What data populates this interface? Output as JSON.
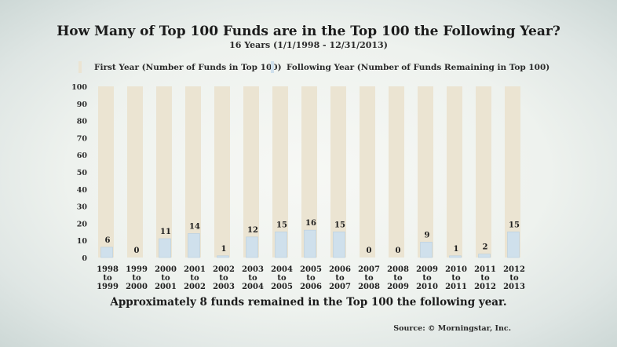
{
  "chart_data": {
    "type": "bar",
    "title": "How Many of Top 100 Funds are in the Top 100 the Following Year?",
    "subtitle": "16 Years (1/1/1998 - 12/31/2013)",
    "categories": [
      [
        "1998",
        "to",
        "1999"
      ],
      [
        "1999",
        "to",
        "2000"
      ],
      [
        "2000",
        "to",
        "2001"
      ],
      [
        "2001",
        "to",
        "2002"
      ],
      [
        "2002",
        "to",
        "2003"
      ],
      [
        "2003",
        "to",
        "2004"
      ],
      [
        "2004",
        "to",
        "2005"
      ],
      [
        "2005",
        "to",
        "2006"
      ],
      [
        "2006",
        "to",
        "2007"
      ],
      [
        "2007",
        "to",
        "2008"
      ],
      [
        "2008",
        "to",
        "2009"
      ],
      [
        "2009",
        "to",
        "2010"
      ],
      [
        "2010",
        "to",
        "2011"
      ],
      [
        "2011",
        "to",
        "2012"
      ],
      [
        "2012",
        "to",
        "2013"
      ]
    ],
    "series": [
      {
        "name": "First Year (Number of Funds in Top 100)",
        "color": "#ebe4d2",
        "values": [
          100,
          100,
          100,
          100,
          100,
          100,
          100,
          100,
          100,
          100,
          100,
          100,
          100,
          100,
          100
        ]
      },
      {
        "name": "Following Year (Number of Funds Remaining in Top 100)",
        "color": "#cfe0ec",
        "values": [
          6,
          0,
          11,
          14,
          1,
          12,
          15,
          16,
          15,
          0,
          0,
          9,
          1,
          2,
          15
        ]
      }
    ],
    "ylim": [
      0,
      100
    ],
    "yticks": [
      0,
      10,
      20,
      30,
      40,
      50,
      60,
      70,
      80,
      90,
      100
    ],
    "grid": false,
    "legend_position": "top"
  },
  "footer": "Approximately 8 funds remained in the Top 100 the following year.",
  "source": "Source: © Morningstar, Inc."
}
